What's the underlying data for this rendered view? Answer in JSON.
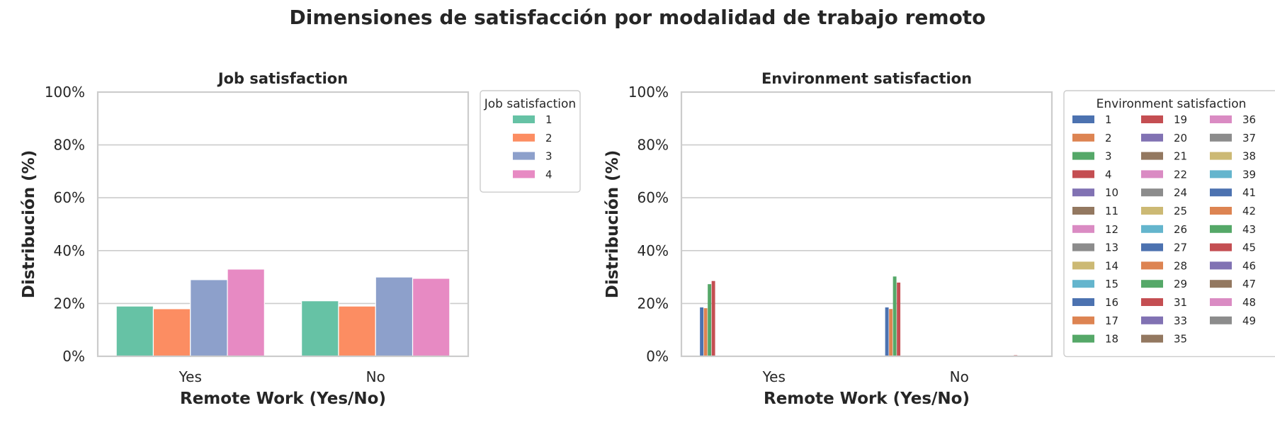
{
  "suptitle": "Dimensiones de satisfacción por modalidad de trabajo remoto",
  "chart_data": [
    {
      "type": "bar",
      "title": "Job satisfaction",
      "xlabel": "Remote Work (Yes/No)",
      "ylabel": "Distribución (%)",
      "categories": [
        "Yes",
        "No"
      ],
      "ylim": [
        0,
        1
      ],
      "yticks": [
        "0%",
        "20%",
        "40%",
        "60%",
        "80%",
        "100%"
      ],
      "grid": true,
      "legend": {
        "title": "Job satisfaction",
        "placement": "outside upper right",
        "ncol": 1
      },
      "series": [
        {
          "name": "1",
          "color": "#66c2a5",
          "values": [
            0.19,
            0.21
          ]
        },
        {
          "name": "2",
          "color": "#fc8d62",
          "values": [
            0.18,
            0.19
          ]
        },
        {
          "name": "3",
          "color": "#8da0cb",
          "values": [
            0.29,
            0.3
          ]
        },
        {
          "name": "4",
          "color": "#e78ac3",
          "values": [
            0.33,
            0.295
          ]
        }
      ]
    },
    {
      "type": "bar",
      "title": "Environment satisfaction",
      "xlabel": "Remote Work (Yes/No)",
      "ylabel": "Distribución (%)",
      "categories": [
        "Yes",
        "No"
      ],
      "ylim": [
        0,
        1
      ],
      "yticks": [
        "0%",
        "20%",
        "40%",
        "60%",
        "80%",
        "100%"
      ],
      "grid": true,
      "legend": {
        "title": "Environment satisfaction",
        "placement": "outside upper right",
        "ncol": 3
      },
      "palette": [
        "#4c72b0",
        "#dd8452",
        "#55a868",
        "#c44e52",
        "#8172b3",
        "#937860",
        "#da8bc3",
        "#8c8c8c",
        "#ccb974",
        "#64b5cd"
      ],
      "series_names": [
        "1",
        "2",
        "3",
        "4",
        "10",
        "11",
        "12",
        "13",
        "14",
        "15",
        "16",
        "17",
        "18",
        "19",
        "20",
        "21",
        "22",
        "24",
        "25",
        "26",
        "27",
        "28",
        "29",
        "31",
        "33",
        "35",
        "36",
        "37",
        "38",
        "39",
        "41",
        "42",
        "43",
        "45",
        "46",
        "47",
        "48",
        "49"
      ],
      "series_values": {
        "1": [
          0.185,
          0.185
        ],
        "2": [
          0.182,
          0.179
        ],
        "3": [
          0.273,
          0.302
        ],
        "4": [
          0.285,
          0.279
        ],
        "45": [
          0.0,
          0.004
        ]
      }
    }
  ]
}
